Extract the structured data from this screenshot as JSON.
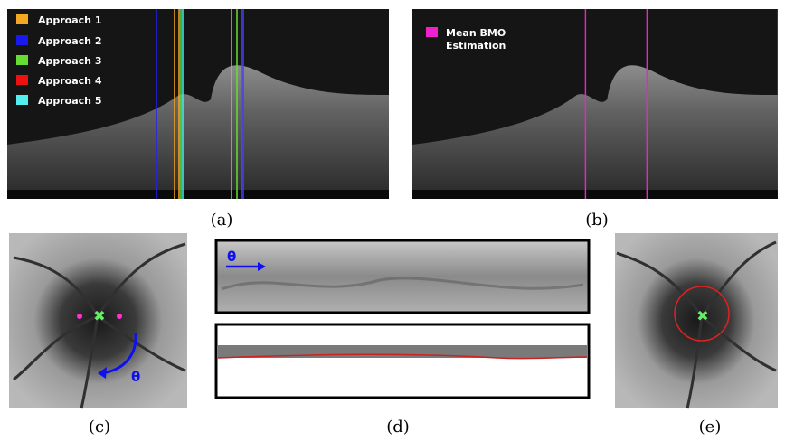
{
  "panels": [
    {
      "label": "(a)",
      "legend": [
        "Approach 1",
        "Approach 2",
        "Approach 3",
        "Approach 4",
        "Approach 5"
      ]
    },
    {
      "label": "(b)",
      "legend": [
        "Mean BMO",
        "Estimation"
      ]
    },
    {
      "label": "(c)",
      "annotation": "θ"
    },
    {
      "label": "(d)",
      "annotation": "θ"
    },
    {
      "label": "(e)"
    }
  ]
}
